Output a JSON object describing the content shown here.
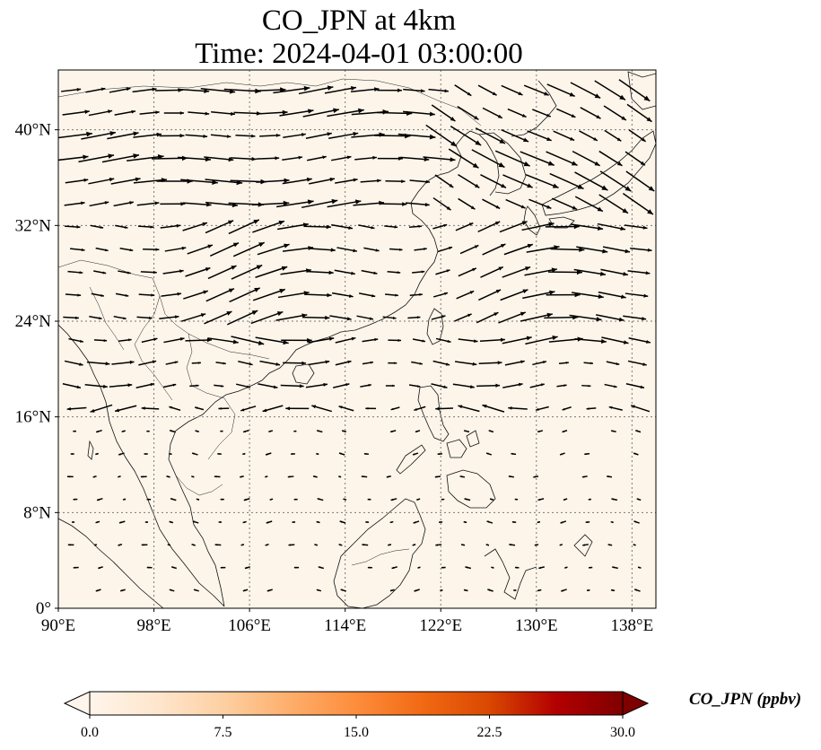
{
  "title": {
    "line1": "CO_JPN at 4km",
    "line2": "Time: 2024-04-01 03:00:00"
  },
  "map": {
    "lon_range": [
      90,
      140
    ],
    "lat_range": [
      0,
      45
    ],
    "background_color": "#fdf5ea",
    "gridlines": true,
    "lon_ticks": [
      {
        "value": 90,
        "label": "90°E"
      },
      {
        "value": 98,
        "label": "98°E"
      },
      {
        "value": 106,
        "label": "106°E"
      },
      {
        "value": 114,
        "label": "114°E"
      },
      {
        "value": 122,
        "label": "122°E"
      },
      {
        "value": 130,
        "label": "130°E"
      },
      {
        "value": 138,
        "label": "138°E"
      }
    ],
    "lat_ticks": [
      {
        "value": 0,
        "label": "0°"
      },
      {
        "value": 8,
        "label": "8°N"
      },
      {
        "value": 16,
        "label": "16°N"
      },
      {
        "value": 24,
        "label": "24°N"
      },
      {
        "value": 32,
        "label": "32°N"
      },
      {
        "value": 40,
        "label": "40°N"
      }
    ]
  },
  "colorbar": {
    "label": "CO_JPN (ppbv)",
    "ticks": [
      "0.0",
      "7.5",
      "15.0",
      "22.5",
      "30.0"
    ],
    "min": 0,
    "max": 30,
    "extend": "both",
    "colors": [
      "#fff5eb",
      "#fee6ce",
      "#fdd0a2",
      "#fdae6b",
      "#fd8d3c",
      "#f16913",
      "#d94801",
      "#b30000",
      "#7f0000"
    ]
  }
}
